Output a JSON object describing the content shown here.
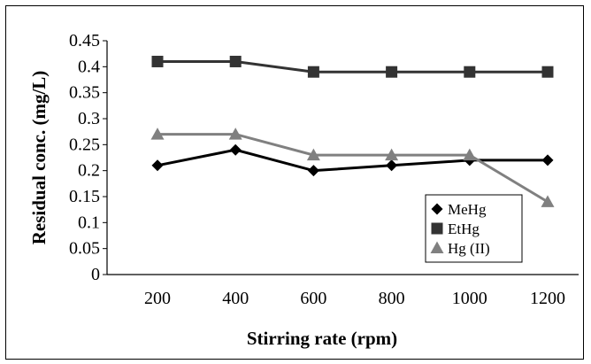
{
  "chart_data": {
    "type": "line",
    "title": "",
    "xlabel": "Stirring rate (rpm)",
    "ylabel": "Residual conc. (mg/L)",
    "categories": [
      "200",
      "400",
      "600",
      "800",
      "1000",
      "1200"
    ],
    "yticks": [
      "0",
      "0.05",
      "0.1",
      "0.15",
      "0.2",
      "0.25",
      "0.3",
      "0.35",
      "0.4",
      "0.45"
    ],
    "ylim": [
      0,
      0.45
    ],
    "grid": false,
    "legend_position": "bottom-right",
    "series": [
      {
        "name": "MeHg",
        "marker": "diamond",
        "color": "#000000",
        "values": [
          0.21,
          0.24,
          0.2,
          0.21,
          0.22,
          0.22
        ]
      },
      {
        "name": "EtHg",
        "marker": "square",
        "color": "#333333",
        "values": [
          0.41,
          0.41,
          0.39,
          0.39,
          0.39,
          0.39
        ]
      },
      {
        "name": "Hg (II)",
        "marker": "triangle",
        "color": "#808080",
        "values": [
          0.27,
          0.27,
          0.23,
          0.23,
          0.23,
          0.14
        ]
      }
    ]
  }
}
